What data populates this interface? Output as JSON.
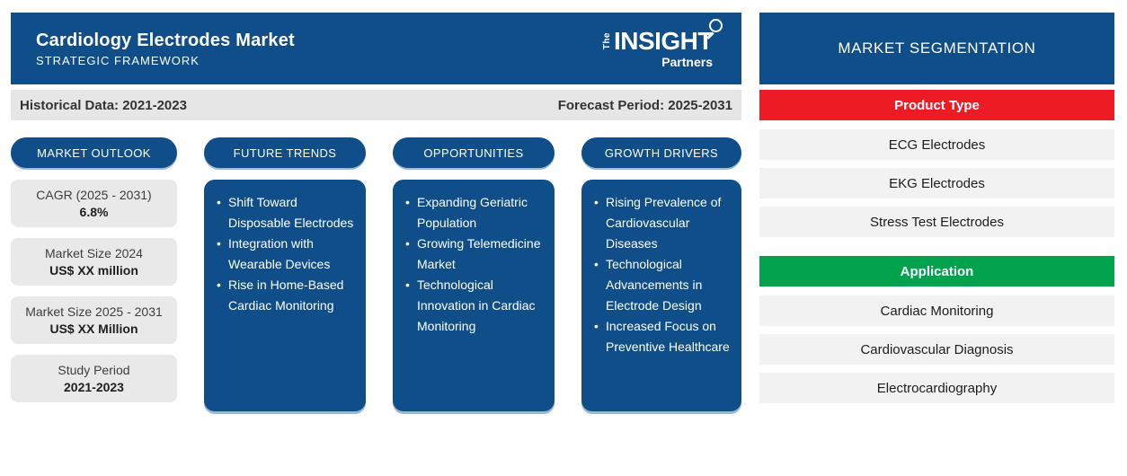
{
  "header": {
    "title": "Cardiology Electrodes Market",
    "subtitle": "STRATEGIC FRAMEWORK"
  },
  "logo": {
    "the": "The",
    "insight": "INSIGHT",
    "partners": "Partners"
  },
  "period_bar": {
    "historical": "Historical Data: 2021-2023",
    "forecast": "Forecast Period: 2025-2031"
  },
  "outlook": {
    "header": "MARKET OUTLOOK",
    "stats": [
      {
        "label": "CAGR (2025 - 2031)",
        "value": "6.8%"
      },
      {
        "label": "Market Size 2024",
        "value": "US$ XX million"
      },
      {
        "label": "Market Size 2025 - 2031",
        "value": "US$ XX Million"
      },
      {
        "label": "Study Period",
        "value": "2021-2023"
      }
    ]
  },
  "columns": [
    {
      "header": "FUTURE TRENDS",
      "bullets": [
        "Shift Toward Disposable Electrodes",
        "Integration with Wearable Devices",
        "Rise in Home-Based Cardiac Monitoring"
      ]
    },
    {
      "header": "OPPORTUNITIES",
      "bullets": [
        "Expanding Geriatric Population",
        "Growing Telemedicine Market",
        "Technological Innovation in Cardiac Monitoring"
      ]
    },
    {
      "header": "GROWTH DRIVERS",
      "bullets": [
        "Rising Prevalence of Cardiovascular Diseases",
        "Technological Advancements in Electrode Design",
        "Increased Focus on Preventive Healthcare"
      ]
    }
  ],
  "segmentation": {
    "title": "MARKET SEGMENTATION",
    "groups": [
      {
        "label": "Product Type",
        "color": "#ed1c24",
        "items": [
          "ECG Electrodes",
          "EKG Electrodes",
          "Stress Test Electrodes"
        ]
      },
      {
        "label": "Application",
        "color": "#00a24e",
        "items": [
          "Cardiac Monitoring",
          "Cardiovascular Diagnosis",
          "Electrocardiography"
        ]
      }
    ]
  },
  "colors": {
    "primary_blue": "#0f4e88",
    "red": "#ed1c24",
    "green": "#00a24e",
    "light_gray": "#e9e9e9",
    "row_gray": "#f2f2f2"
  }
}
